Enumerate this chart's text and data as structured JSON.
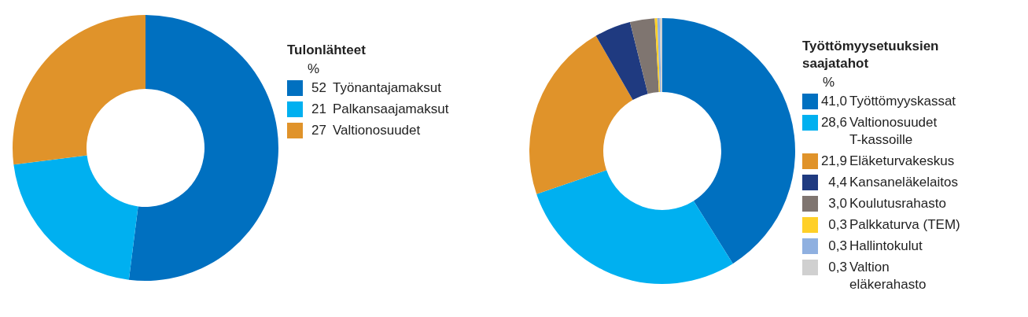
{
  "chart_data": [
    {
      "type": "donut",
      "legend_title": "Tulonlähteet",
      "annotations": [
        "%"
      ],
      "legend": "right",
      "categories": [
        "Työnantajamaksut",
        "Palkansaajamaksut",
        "Valtionosuudet"
      ],
      "values": [
        52,
        21,
        27
      ],
      "value_labels": [
        "52",
        "21",
        "27"
      ],
      "colors": [
        "#0070c0",
        "#00b0f0",
        "#e0932a"
      ]
    },
    {
      "type": "donut",
      "legend_title": "Työttömyysetuuksien\nsaajatahot",
      "annotations": [
        "%"
      ],
      "legend": "right",
      "categories": [
        "Työttömyyskassat",
        "Valtionosuudet\nT-kassoille",
        "Eläketurvakeskus",
        "Kansaneläkelaitos",
        "Koulutusrahasto",
        "Palkkaturva (TEM)",
        "Hallintokulut",
        "Valtion\neläkerahasto"
      ],
      "values": [
        41.0,
        28.6,
        21.9,
        4.4,
        3.0,
        0.3,
        0.3,
        0.3
      ],
      "value_labels": [
        "41,0",
        "28,6",
        "21,9",
        "4,4",
        "3,0",
        "0,3",
        "0,3",
        "0,3"
      ],
      "colors": [
        "#0070c0",
        "#00b0f0",
        "#e0932a",
        "#1f3a80",
        "#7f7570",
        "#ffd028",
        "#8fb0e0",
        "#d0d0d0"
      ]
    }
  ]
}
